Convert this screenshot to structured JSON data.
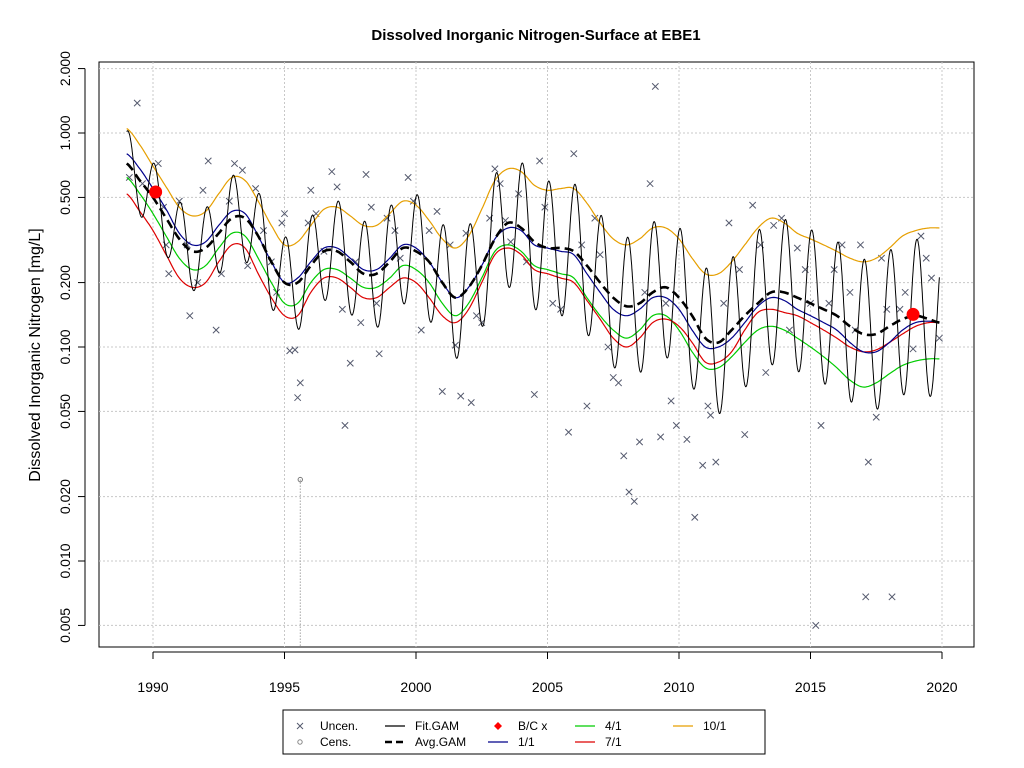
{
  "chart_data": {
    "type": "line",
    "title": "Dissolved Inorganic Nitrogen-Surface at EBE1",
    "xlabel": "",
    "ylabel": "Dissolved Inorganic Nitrogen [mg/L]",
    "yscale": "log",
    "xlim": [
      1987.8,
      2021.2
    ],
    "ylim": [
      0.0039,
      2.65
    ],
    "xticks": [
      1990,
      1995,
      2000,
      2005,
      2010,
      2015,
      2020
    ],
    "xtick_labels": [
      "1990",
      "1995",
      "2000",
      "2005",
      "2010",
      "2015",
      "2020"
    ],
    "yticks": [
      0.005,
      0.01,
      0.02,
      0.05,
      0.1,
      0.2,
      0.5,
      1,
      2
    ],
    "ytick_labels": [
      "0.005",
      "0.010",
      "0.020",
      "0.050",
      "0.100",
      "0.200",
      "0.500",
      "1.000",
      "2.000"
    ],
    "grid": true,
    "legend_position": "bottom",
    "legend": [
      {
        "label": "Uncen.",
        "symbol": "x",
        "color": "#555a6e"
      },
      {
        "label": "Cens.",
        "symbol": "circle",
        "color": "#888888"
      },
      {
        "label": "Fit.GAM",
        "symbol": "line",
        "color": "#000000"
      },
      {
        "label": "Avg.GAM",
        "symbol": "dashed",
        "color": "#000000"
      },
      {
        "label": "B/C x",
        "symbol": "diamond",
        "color": "#ff0000"
      },
      {
        "label": "1/1",
        "symbol": "line",
        "color": "#00008b"
      },
      {
        "label": "4/1",
        "symbol": "line",
        "color": "#00cc00"
      },
      {
        "label": "7/1",
        "symbol": "line",
        "color": "#dd0000"
      },
      {
        "label": "10/1",
        "symbol": "line",
        "color": "#e69f00"
      }
    ],
    "colors": {
      "fit": "#000000",
      "avg": "#000000",
      "d1_1": "#00008b",
      "d4_1": "#00cc00",
      "d7_1": "#dd0000",
      "d10_1": "#e69f00",
      "bc": "#ff0000",
      "points": "#555a6e",
      "grid": "#c8c8c8"
    },
    "series": [
      {
        "name": "Avg.GAM",
        "x": [
          1989.0,
          1989.5,
          1990.0,
          1990.5,
          1991.0,
          1991.5,
          1992.0,
          1992.5,
          1993.0,
          1993.5,
          1994.0,
          1994.5,
          1995.0,
          1995.5,
          1996.0,
          1996.5,
          1997.0,
          1997.5,
          1998.0,
          1998.5,
          1999.0,
          1999.5,
          2000.0,
          2000.5,
          2001.0,
          2001.5,
          2002.0,
          2002.5,
          2003.0,
          2003.5,
          2004.0,
          2004.5,
          2005.0,
          2005.5,
          2006.0,
          2006.5,
          2007.0,
          2007.5,
          2008.0,
          2008.5,
          2009.0,
          2009.5,
          2010.0,
          2010.5,
          2011.0,
          2011.5,
          2012.0,
          2012.5,
          2013.0,
          2013.5,
          2014.0,
          2014.5,
          2015.0,
          2015.5,
          2016.0,
          2016.5,
          2017.0,
          2017.5,
          2018.0,
          2018.5,
          2019.0,
          2019.5,
          2019.9
        ],
        "y": [
          0.72,
          0.6,
          0.5,
          0.4,
          0.32,
          0.28,
          0.29,
          0.34,
          0.4,
          0.4,
          0.33,
          0.25,
          0.2,
          0.2,
          0.24,
          0.28,
          0.28,
          0.25,
          0.22,
          0.22,
          0.25,
          0.29,
          0.28,
          0.25,
          0.2,
          0.17,
          0.19,
          0.24,
          0.32,
          0.38,
          0.36,
          0.31,
          0.29,
          0.29,
          0.28,
          0.24,
          0.2,
          0.17,
          0.155,
          0.16,
          0.18,
          0.19,
          0.17,
          0.14,
          0.11,
          0.105,
          0.12,
          0.14,
          0.16,
          0.18,
          0.18,
          0.17,
          0.16,
          0.15,
          0.14,
          0.125,
          0.115,
          0.115,
          0.125,
          0.135,
          0.14,
          0.135,
          0.13
        ]
      },
      {
        "name": "1/1",
        "x": [
          1989.0,
          1989.5,
          1990.0,
          1990.5,
          1991.0,
          1991.5,
          1992.0,
          1992.5,
          1993.0,
          1993.5,
          1994.0,
          1994.5,
          1995.0,
          1995.5,
          1996.0,
          1996.5,
          1997.0,
          1997.5,
          1998.0,
          1998.5,
          1999.0,
          1999.5,
          2000.0,
          2000.5,
          2001.0,
          2001.5,
          2002.0,
          2002.5,
          2003.0,
          2003.5,
          2004.0,
          2004.5,
          2005.0,
          2005.5,
          2006.0,
          2006.5,
          2007.0,
          2007.5,
          2008.0,
          2008.5,
          2009.0,
          2009.5,
          2010.0,
          2010.5,
          2011.0,
          2011.5,
          2012.0,
          2012.5,
          2013.0,
          2013.5,
          2014.0,
          2014.5,
          2015.0,
          2015.5,
          2016.0,
          2016.5,
          2017.0,
          2017.5,
          2018.0,
          2018.5,
          2019.0,
          2019.5,
          2019.9
        ],
        "y": [
          0.8,
          0.68,
          0.55,
          0.44,
          0.34,
          0.3,
          0.31,
          0.37,
          0.43,
          0.42,
          0.33,
          0.25,
          0.2,
          0.21,
          0.25,
          0.29,
          0.29,
          0.26,
          0.23,
          0.23,
          0.26,
          0.3,
          0.29,
          0.25,
          0.2,
          0.17,
          0.19,
          0.24,
          0.32,
          0.36,
          0.35,
          0.3,
          0.29,
          0.28,
          0.27,
          0.22,
          0.18,
          0.15,
          0.14,
          0.15,
          0.17,
          0.17,
          0.15,
          0.12,
          0.1,
          0.1,
          0.11,
          0.13,
          0.155,
          0.17,
          0.165,
          0.15,
          0.14,
          0.13,
          0.12,
          0.105,
          0.095,
          0.095,
          0.105,
          0.12,
          0.13,
          0.132,
          0.13
        ]
      },
      {
        "name": "4/1",
        "x": [
          1989.0,
          1989.5,
          1990.0,
          1990.5,
          1991.0,
          1991.5,
          1992.0,
          1992.5,
          1993.0,
          1993.5,
          1994.0,
          1994.5,
          1995.0,
          1995.5,
          1996.0,
          1996.5,
          1997.0,
          1997.5,
          1998.0,
          1998.5,
          1999.0,
          1999.5,
          2000.0,
          2000.5,
          2001.0,
          2001.5,
          2002.0,
          2002.5,
          2003.0,
          2003.5,
          2004.0,
          2004.5,
          2005.0,
          2005.5,
          2006.0,
          2006.5,
          2007.0,
          2007.5,
          2008.0,
          2008.5,
          2009.0,
          2009.5,
          2010.0,
          2010.5,
          2011.0,
          2011.5,
          2012.0,
          2012.5,
          2013.0,
          2013.5,
          2014.0,
          2014.5,
          2015.0,
          2015.5,
          2016.0,
          2016.5,
          2017.0,
          2017.5,
          2018.0,
          2018.5,
          2019.0,
          2019.5,
          2019.9
        ],
        "y": [
          0.62,
          0.52,
          0.42,
          0.33,
          0.26,
          0.23,
          0.24,
          0.29,
          0.34,
          0.33,
          0.26,
          0.2,
          0.16,
          0.16,
          0.2,
          0.23,
          0.23,
          0.21,
          0.19,
          0.19,
          0.21,
          0.24,
          0.23,
          0.2,
          0.16,
          0.14,
          0.16,
          0.21,
          0.28,
          0.3,
          0.28,
          0.24,
          0.23,
          0.22,
          0.21,
          0.17,
          0.14,
          0.12,
          0.11,
          0.12,
          0.14,
          0.14,
          0.12,
          0.095,
          0.08,
          0.08,
          0.09,
          0.105,
          0.12,
          0.125,
          0.12,
          0.11,
          0.1,
          0.09,
          0.08,
          0.07,
          0.065,
          0.068,
          0.075,
          0.082,
          0.086,
          0.088,
          0.088
        ]
      },
      {
        "name": "7/1",
        "x": [
          1989.0,
          1989.5,
          1990.0,
          1990.5,
          1991.0,
          1991.5,
          1992.0,
          1992.5,
          1993.0,
          1993.5,
          1994.0,
          1994.5,
          1995.0,
          1995.5,
          1996.0,
          1996.5,
          1997.0,
          1997.5,
          1998.0,
          1998.5,
          1999.0,
          1999.5,
          2000.0,
          2000.5,
          2001.0,
          2001.5,
          2002.0,
          2002.5,
          2003.0,
          2003.5,
          2004.0,
          2004.5,
          2005.0,
          2005.5,
          2006.0,
          2006.5,
          2007.0,
          2007.5,
          2008.0,
          2008.5,
          2009.0,
          2009.5,
          2010.0,
          2010.5,
          2011.0,
          2011.5,
          2012.0,
          2012.5,
          2013.0,
          2013.5,
          2014.0,
          2014.5,
          2015.0,
          2015.5,
          2016.0,
          2016.5,
          2017.0,
          2017.5,
          2018.0,
          2018.5,
          2019.0,
          2019.5,
          2019.9
        ],
        "y": [
          0.52,
          0.43,
          0.35,
          0.27,
          0.21,
          0.19,
          0.2,
          0.25,
          0.3,
          0.29,
          0.22,
          0.17,
          0.14,
          0.14,
          0.18,
          0.21,
          0.21,
          0.19,
          0.17,
          0.17,
          0.19,
          0.21,
          0.2,
          0.17,
          0.14,
          0.13,
          0.15,
          0.2,
          0.27,
          0.29,
          0.27,
          0.23,
          0.22,
          0.21,
          0.2,
          0.165,
          0.135,
          0.11,
          0.1,
          0.11,
          0.13,
          0.135,
          0.125,
          0.105,
          0.085,
          0.085,
          0.095,
          0.12,
          0.145,
          0.15,
          0.145,
          0.14,
          0.13,
          0.12,
          0.11,
          0.1,
          0.095,
          0.097,
          0.105,
          0.115,
          0.125,
          0.13,
          0.13
        ]
      },
      {
        "name": "10/1",
        "x": [
          1989.0,
          1989.5,
          1990.0,
          1990.5,
          1991.0,
          1991.5,
          1992.0,
          1992.5,
          1993.0,
          1993.5,
          1994.0,
          1994.5,
          1995.0,
          1995.5,
          1996.0,
          1996.5,
          1997.0,
          1997.5,
          1998.0,
          1998.5,
          1999.0,
          1999.5,
          2000.0,
          2000.5,
          2001.0,
          2001.5,
          2002.0,
          2002.5,
          2003.0,
          2003.5,
          2004.0,
          2004.5,
          2005.0,
          2005.5,
          2006.0,
          2006.5,
          2007.0,
          2007.5,
          2008.0,
          2008.5,
          2009.0,
          2009.5,
          2010.0,
          2010.5,
          2011.0,
          2011.5,
          2012.0,
          2012.5,
          2013.0,
          2013.5,
          2014.0,
          2014.5,
          2015.0,
          2015.5,
          2016.0,
          2016.5,
          2017.0,
          2017.5,
          2018.0,
          2018.5,
          2019.0,
          2019.5,
          2019.9
        ],
        "y": [
          1.05,
          0.88,
          0.7,
          0.56,
          0.45,
          0.41,
          0.43,
          0.52,
          0.62,
          0.6,
          0.48,
          0.37,
          0.3,
          0.31,
          0.37,
          0.44,
          0.45,
          0.41,
          0.37,
          0.37,
          0.42,
          0.48,
          0.46,
          0.39,
          0.32,
          0.29,
          0.33,
          0.44,
          0.6,
          0.68,
          0.66,
          0.57,
          0.54,
          0.55,
          0.55,
          0.47,
          0.38,
          0.32,
          0.3,
          0.32,
          0.36,
          0.36,
          0.32,
          0.26,
          0.22,
          0.22,
          0.25,
          0.3,
          0.36,
          0.4,
          0.38,
          0.34,
          0.32,
          0.3,
          0.28,
          0.26,
          0.25,
          0.26,
          0.29,
          0.33,
          0.35,
          0.36,
          0.36
        ]
      }
    ],
    "fit_gam": {
      "name": "Fit.GAM",
      "seasonal_amplitude": [
        0.36,
        0.72,
        0.83
      ],
      "phase_peak_year_fraction": 0.05,
      "x_range": [
        1989.0,
        2019.9
      ]
    },
    "bc_points": [
      {
        "x": 1990.1,
        "y": 0.53
      },
      {
        "x": 2018.9,
        "y": 0.142
      }
    ],
    "censored_points": [
      {
        "x": 1995.6,
        "y": 0.024
      }
    ],
    "uncensored_points": [
      [
        1989.4,
        1.38
      ],
      [
        1989.1,
        0.62
      ],
      [
        1989.6,
        0.58
      ],
      [
        1990.2,
        0.72
      ],
      [
        1990.4,
        0.45
      ],
      [
        1990.5,
        0.3
      ],
      [
        1990.6,
        0.22
      ],
      [
        1991.0,
        0.48
      ],
      [
        1991.3,
        0.3
      ],
      [
        1991.4,
        0.14
      ],
      [
        1991.7,
        0.2
      ],
      [
        1991.9,
        0.54
      ],
      [
        1992.1,
        0.74
      ],
      [
        1992.4,
        0.12
      ],
      [
        1992.6,
        0.22
      ],
      [
        1992.9,
        0.48
      ],
      [
        1993.1,
        0.72
      ],
      [
        1993.4,
        0.67
      ],
      [
        1993.6,
        0.24
      ],
      [
        1993.9,
        0.55
      ],
      [
        1994.2,
        0.35
      ],
      [
        1994.5,
        0.25
      ],
      [
        1994.7,
        0.18
      ],
      [
        1994.9,
        0.38
      ],
      [
        1995.0,
        0.42
      ],
      [
        1995.2,
        0.096
      ],
      [
        1995.4,
        0.097
      ],
      [
        1995.5,
        0.058
      ],
      [
        1995.6,
        0.068
      ],
      [
        1995.9,
        0.38
      ],
      [
        1996.0,
        0.54
      ],
      [
        1996.2,
        0.42
      ],
      [
        1996.5,
        0.28
      ],
      [
        1996.8,
        0.66
      ],
      [
        1997.0,
        0.56
      ],
      [
        1997.2,
        0.15
      ],
      [
        1997.3,
        0.043
      ],
      [
        1997.5,
        0.084
      ],
      [
        1997.7,
        0.25
      ],
      [
        1997.9,
        0.13
      ],
      [
        1998.1,
        0.64
      ],
      [
        1998.3,
        0.45
      ],
      [
        1998.5,
        0.16
      ],
      [
        1998.6,
        0.093
      ],
      [
        1998.9,
        0.4
      ],
      [
        1999.2,
        0.35
      ],
      [
        1999.4,
        0.26
      ],
      [
        1999.7,
        0.62
      ],
      [
        1999.9,
        0.48
      ],
      [
        2000.2,
        0.12
      ],
      [
        2000.5,
        0.35
      ],
      [
        2000.8,
        0.43
      ],
      [
        2001.0,
        0.062
      ],
      [
        2001.3,
        0.3
      ],
      [
        2001.5,
        0.102
      ],
      [
        2001.7,
        0.059
      ],
      [
        2001.9,
        0.34
      ],
      [
        2002.1,
        0.055
      ],
      [
        2002.3,
        0.14
      ],
      [
        2002.5,
        0.13
      ],
      [
        2002.8,
        0.4
      ],
      [
        2003.0,
        0.68
      ],
      [
        2003.2,
        0.58
      ],
      [
        2003.4,
        0.39
      ],
      [
        2003.6,
        0.31
      ],
      [
        2003.9,
        0.52
      ],
      [
        2004.2,
        0.25
      ],
      [
        2004.5,
        0.06
      ],
      [
        2004.7,
        0.74
      ],
      [
        2004.9,
        0.45
      ],
      [
        2005.2,
        0.16
      ],
      [
        2005.5,
        0.15
      ],
      [
        2005.8,
        0.04
      ],
      [
        2006.0,
        0.8
      ],
      [
        2006.3,
        0.3
      ],
      [
        2006.5,
        0.053
      ],
      [
        2006.8,
        0.4
      ],
      [
        2007.0,
        0.27
      ],
      [
        2007.3,
        0.1
      ],
      [
        2007.5,
        0.072
      ],
      [
        2007.7,
        0.068
      ],
      [
        2007.9,
        0.031
      ],
      [
        2008.1,
        0.021
      ],
      [
        2008.3,
        0.019
      ],
      [
        2008.5,
        0.036
      ],
      [
        2008.7,
        0.18
      ],
      [
        2008.9,
        0.58
      ],
      [
        2009.1,
        1.65
      ],
      [
        2009.3,
        0.038
      ],
      [
        2009.5,
        0.16
      ],
      [
        2009.7,
        0.056
      ],
      [
        2009.9,
        0.043
      ],
      [
        2010.3,
        0.037
      ],
      [
        2010.6,
        0.016
      ],
      [
        2010.9,
        0.028
      ],
      [
        2011.1,
        0.053
      ],
      [
        2011.2,
        0.048
      ],
      [
        2011.4,
        0.029
      ],
      [
        2011.7,
        0.16
      ],
      [
        2011.9,
        0.38
      ],
      [
        2012.3,
        0.23
      ],
      [
        2012.5,
        0.039
      ],
      [
        2012.8,
        0.46
      ],
      [
        2013.1,
        0.3
      ],
      [
        2013.3,
        0.076
      ],
      [
        2013.6,
        0.37
      ],
      [
        2013.9,
        0.4
      ],
      [
        2014.2,
        0.12
      ],
      [
        2014.5,
        0.29
      ],
      [
        2014.8,
        0.23
      ],
      [
        2015.0,
        0.16
      ],
      [
        2015.2,
        0.005
      ],
      [
        2015.4,
        0.043
      ],
      [
        2015.7,
        0.16
      ],
      [
        2015.9,
        0.23
      ],
      [
        2016.2,
        0.3
      ],
      [
        2016.5,
        0.18
      ],
      [
        2016.7,
        0.12
      ],
      [
        2016.9,
        0.3
      ],
      [
        2017.1,
        0.0068
      ],
      [
        2017.2,
        0.029
      ],
      [
        2017.5,
        0.047
      ],
      [
        2017.7,
        0.26
      ],
      [
        2017.9,
        0.15
      ],
      [
        2018.1,
        0.0068
      ],
      [
        2018.4,
        0.15
      ],
      [
        2018.6,
        0.18
      ],
      [
        2018.9,
        0.098
      ],
      [
        2019.2,
        0.33
      ],
      [
        2019.4,
        0.26
      ],
      [
        2019.6,
        0.21
      ],
      [
        2019.9,
        0.11
      ]
    ]
  }
}
